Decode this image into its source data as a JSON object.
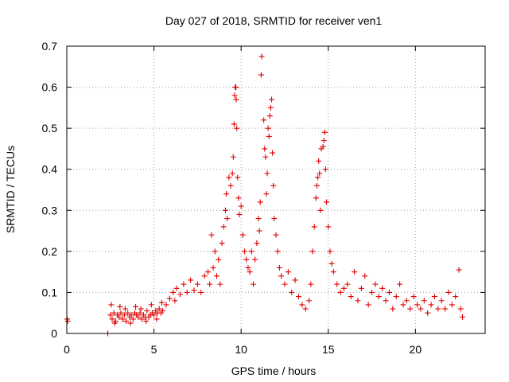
{
  "chart_data": {
    "type": "scatter",
    "title": "Day 027 of 2018, SRMTID for receiver ven1",
    "xlabel": "GPS time / hours",
    "ylabel": "SRMTID / TECUs",
    "xlim": [
      0,
      24
    ],
    "ylim": [
      0,
      0.7
    ],
    "x_ticks": [
      0,
      5,
      10,
      15,
      20
    ],
    "y_ticks": [
      0,
      0.1,
      0.2,
      0.3,
      0.4,
      0.5,
      0.6,
      0.7
    ],
    "x_tick_labels": [
      "0",
      "5",
      "10",
      "15",
      "20"
    ],
    "y_tick_labels": [
      "0",
      "0.1",
      "0.2",
      "0.3",
      "0.4",
      "0.5",
      "0.6",
      "0.7"
    ],
    "grid": true,
    "marker": "+",
    "color": "#e00000",
    "series": [
      {
        "name": "SRMTID",
        "points": [
          [
            0.02,
            0.035
          ],
          [
            0.05,
            0.03
          ],
          [
            2.35,
            0.0
          ],
          [
            2.5,
            0.045
          ],
          [
            2.6,
            0.035
          ],
          [
            2.7,
            0.05
          ],
          [
            2.8,
            0.03
          ],
          [
            2.9,
            0.045
          ],
          [
            3.0,
            0.04
          ],
          [
            3.1,
            0.05
          ],
          [
            3.2,
            0.035
          ],
          [
            3.3,
            0.045
          ],
          [
            3.4,
            0.03
          ],
          [
            3.5,
            0.05
          ],
          [
            3.6,
            0.04
          ],
          [
            3.7,
            0.045
          ],
          [
            3.8,
            0.035
          ],
          [
            3.9,
            0.05
          ],
          [
            4.0,
            0.045
          ],
          [
            4.1,
            0.04
          ],
          [
            4.2,
            0.05
          ],
          [
            4.3,
            0.035
          ],
          [
            4.4,
            0.045
          ],
          [
            4.5,
            0.04
          ],
          [
            4.6,
            0.055
          ],
          [
            4.7,
            0.04
          ],
          [
            4.8,
            0.045
          ],
          [
            4.9,
            0.05
          ],
          [
            5.0,
            0.045
          ],
          [
            5.1,
            0.055
          ],
          [
            5.2,
            0.05
          ],
          [
            5.3,
            0.06
          ],
          [
            5.4,
            0.05
          ],
          [
            5.5,
            0.055
          ],
          [
            2.55,
            0.07
          ],
          [
            2.75,
            0.025
          ],
          [
            3.05,
            0.065
          ],
          [
            3.35,
            0.06
          ],
          [
            3.65,
            0.025
          ],
          [
            3.95,
            0.065
          ],
          [
            4.25,
            0.06
          ],
          [
            4.55,
            0.03
          ],
          [
            4.85,
            0.07
          ],
          [
            5.15,
            0.035
          ],
          [
            5.45,
            0.075
          ],
          [
            5.7,
            0.07
          ],
          [
            5.9,
            0.085
          ],
          [
            6.1,
            0.1
          ],
          [
            6.2,
            0.08
          ],
          [
            6.3,
            0.11
          ],
          [
            6.5,
            0.095
          ],
          [
            6.7,
            0.12
          ],
          [
            6.9,
            0.1
          ],
          [
            7.1,
            0.13
          ],
          [
            7.3,
            0.105
          ],
          [
            7.5,
            0.12
          ],
          [
            7.7,
            0.1
          ],
          [
            7.9,
            0.14
          ],
          [
            8.1,
            0.15
          ],
          [
            8.2,
            0.12
          ],
          [
            8.3,
            0.24
          ],
          [
            8.4,
            0.16
          ],
          [
            8.5,
            0.2
          ],
          [
            8.6,
            0.14
          ],
          [
            8.7,
            0.18
          ],
          [
            8.8,
            0.12
          ],
          [
            8.9,
            0.22
          ],
          [
            9.0,
            0.26
          ],
          [
            9.1,
            0.3
          ],
          [
            9.15,
            0.34
          ],
          [
            9.2,
            0.28
          ],
          [
            9.3,
            0.38
          ],
          [
            9.4,
            0.36
          ],
          [
            9.5,
            0.39
          ],
          [
            9.55,
            0.43
          ],
          [
            9.6,
            0.51
          ],
          [
            9.63,
            0.58
          ],
          [
            9.66,
            0.6
          ],
          [
            9.7,
            0.6
          ],
          [
            9.72,
            0.57
          ],
          [
            9.75,
            0.5
          ],
          [
            9.8,
            0.38
          ],
          [
            9.85,
            0.33
          ],
          [
            9.9,
            0.29
          ],
          [
            10.0,
            0.31
          ],
          [
            10.1,
            0.24
          ],
          [
            10.2,
            0.2
          ],
          [
            10.3,
            0.18
          ],
          [
            10.4,
            0.16
          ],
          [
            10.5,
            0.15
          ],
          [
            10.6,
            0.2
          ],
          [
            10.7,
            0.12
          ],
          [
            10.8,
            0.18
          ],
          [
            10.9,
            0.22
          ],
          [
            11.0,
            0.28
          ],
          [
            11.05,
            0.25
          ],
          [
            11.1,
            0.32
          ],
          [
            11.15,
            0.63
          ],
          [
            11.18,
            0.675
          ],
          [
            11.3,
            0.52
          ],
          [
            11.35,
            0.45
          ],
          [
            11.4,
            0.43
          ],
          [
            11.45,
            0.34
          ],
          [
            11.5,
            0.39
          ],
          [
            11.55,
            0.5
          ],
          [
            11.6,
            0.48
          ],
          [
            11.65,
            0.53
          ],
          [
            11.7,
            0.55
          ],
          [
            11.75,
            0.57
          ],
          [
            11.8,
            0.44
          ],
          [
            11.85,
            0.36
          ],
          [
            11.9,
            0.28
          ],
          [
            12.0,
            0.24
          ],
          [
            12.1,
            0.2
          ],
          [
            12.2,
            0.16
          ],
          [
            12.3,
            0.14
          ],
          [
            12.5,
            0.12
          ],
          [
            12.7,
            0.15
          ],
          [
            12.9,
            0.1
          ],
          [
            13.1,
            0.13
          ],
          [
            13.3,
            0.09
          ],
          [
            13.5,
            0.07
          ],
          [
            13.7,
            0.06
          ],
          [
            13.9,
            0.08
          ],
          [
            14.0,
            0.12
          ],
          [
            14.1,
            0.2
          ],
          [
            14.2,
            0.26
          ],
          [
            14.3,
            0.33
          ],
          [
            14.35,
            0.36
          ],
          [
            14.4,
            0.38
          ],
          [
            14.45,
            0.42
          ],
          [
            14.5,
            0.39
          ],
          [
            14.55,
            0.3
          ],
          [
            14.6,
            0.45
          ],
          [
            14.7,
            0.455
          ],
          [
            14.75,
            0.47
          ],
          [
            14.8,
            0.49
          ],
          [
            14.85,
            0.4
          ],
          [
            14.9,
            0.32
          ],
          [
            15.0,
            0.26
          ],
          [
            15.1,
            0.2
          ],
          [
            15.2,
            0.17
          ],
          [
            15.3,
            0.15
          ],
          [
            15.5,
            0.12
          ],
          [
            15.7,
            0.1
          ],
          [
            15.9,
            0.11
          ],
          [
            16.1,
            0.12
          ],
          [
            16.3,
            0.09
          ],
          [
            16.5,
            0.15
          ],
          [
            16.7,
            0.08
          ],
          [
            16.9,
            0.11
          ],
          [
            17.1,
            0.14
          ],
          [
            17.3,
            0.07
          ],
          [
            17.5,
            0.1
          ],
          [
            17.7,
            0.12
          ],
          [
            17.9,
            0.09
          ],
          [
            18.1,
            0.11
          ],
          [
            18.3,
            0.08
          ],
          [
            18.5,
            0.1
          ],
          [
            18.7,
            0.06
          ],
          [
            18.9,
            0.09
          ],
          [
            19.1,
            0.12
          ],
          [
            19.3,
            0.07
          ],
          [
            19.5,
            0.08
          ],
          [
            19.7,
            0.06
          ],
          [
            19.9,
            0.09
          ],
          [
            20.1,
            0.07
          ],
          [
            20.3,
            0.06
          ],
          [
            20.5,
            0.08
          ],
          [
            20.7,
            0.05
          ],
          [
            20.9,
            0.07
          ],
          [
            21.1,
            0.09
          ],
          [
            21.3,
            0.06
          ],
          [
            21.5,
            0.08
          ],
          [
            21.7,
            0.06
          ],
          [
            21.9,
            0.1
          ],
          [
            22.1,
            0.07
          ],
          [
            22.3,
            0.09
          ],
          [
            22.5,
            0.155
          ],
          [
            22.6,
            0.06
          ],
          [
            22.7,
            0.04
          ]
        ]
      }
    ]
  }
}
